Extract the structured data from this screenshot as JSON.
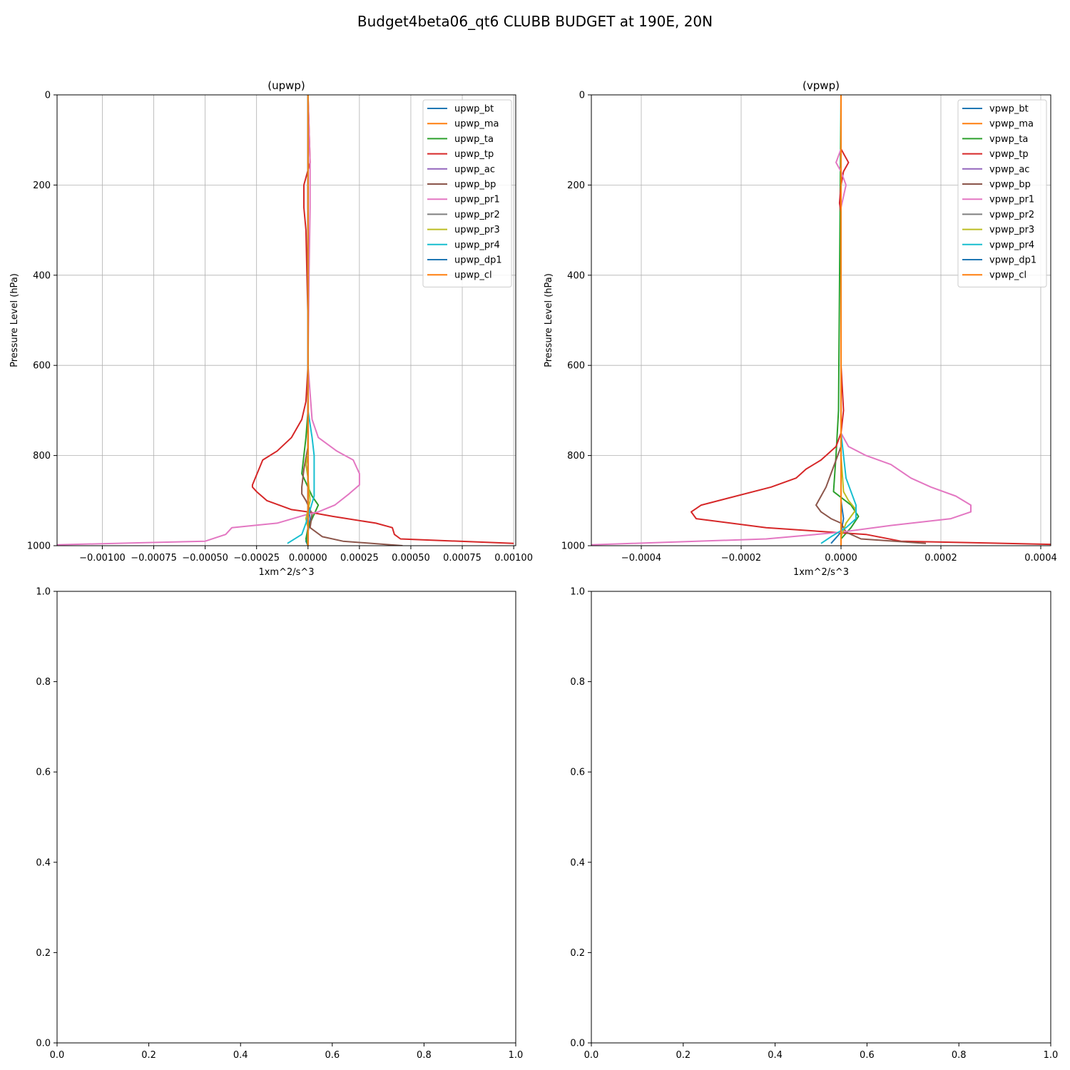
{
  "figure": {
    "suptitle": "Budget4beta06_qt6 CLUBB BUDGET at 190E, 20N"
  },
  "chart_data": [
    {
      "type": "line",
      "title": "(upwp)",
      "xlabel": "1xm^2/s^3",
      "ylabel": "Pressure Level (hPa)",
      "xlim": [
        -0.00122,
        0.00101
      ],
      "ylim": [
        1000,
        0
      ],
      "xticks": [
        -0.001,
        -0.00075,
        -0.0005,
        -0.00025,
        0,
        0.00025,
        0.0005,
        0.00075,
        0.001
      ],
      "xtick_labels": [
        "−0.00100",
        "−0.00075",
        "−0.00050",
        "−0.00025",
        "0.00000",
        "0.00025",
        "0.00050",
        "0.00075",
        "0.00100"
      ],
      "yticks": [
        0,
        200,
        400,
        600,
        800,
        1000
      ],
      "ytick_labels": [
        "0",
        "200",
        "400",
        "600",
        "800",
        "1000"
      ],
      "grid": true,
      "legend_position": "top-right",
      "series": [
        {
          "name": "upwp_bt",
          "color": "#1f77b4",
          "points": [
            [
              0,
              0
            ],
            [
              0,
              900
            ],
            [
              1e-05,
              940
            ],
            [
              0,
              970
            ],
            [
              -1e-05,
              990
            ],
            [
              0,
              1000
            ]
          ]
        },
        {
          "name": "upwp_ma",
          "color": "#ff7f0e",
          "points": [
            [
              0,
              0
            ],
            [
              0,
              1000
            ]
          ]
        },
        {
          "name": "upwp_ta",
          "color": "#2ca02c",
          "points": [
            [
              0,
              0
            ],
            [
              0,
              700
            ],
            [
              -1e-05,
              760
            ],
            [
              -2e-05,
              800
            ],
            [
              -3e-05,
              840
            ],
            [
              2e-05,
              890
            ],
            [
              5e-05,
              910
            ],
            [
              3e-05,
              930
            ],
            [
              0,
              960
            ],
            [
              -1e-05,
              985
            ],
            [
              0,
              1000
            ]
          ]
        },
        {
          "name": "upwp_tp",
          "color": "#d62728",
          "points": [
            [
              0,
              0
            ],
            [
              1e-05,
              150
            ],
            [
              -2e-05,
              200
            ],
            [
              -2e-05,
              250
            ],
            [
              -1e-05,
              300
            ],
            [
              -5e-06,
              400
            ],
            [
              0,
              500
            ],
            [
              0,
              600
            ],
            [
              -1e-05,
              680
            ],
            [
              -3e-05,
              720
            ],
            [
              -8e-05,
              760
            ],
            [
              -0.00015,
              790
            ],
            [
              -0.00022,
              810
            ],
            [
              -0.00027,
              865
            ],
            [
              -0.00027,
              870
            ],
            [
              -0.00025,
              880
            ],
            [
              -0.0002,
              900
            ],
            [
              -8e-05,
              920
            ],
            [
              0,
              925
            ],
            [
              0.00012,
              935
            ],
            [
              0.00033,
              950
            ],
            [
              0.00041,
              960
            ],
            [
              0.00042,
              975
            ],
            [
              0.00045,
              985
            ],
            [
              0.001,
              995
            ]
          ]
        },
        {
          "name": "upwp_ac",
          "color": "#9467bd",
          "points": [
            [
              0,
              0
            ],
            [
              0,
              1000
            ]
          ]
        },
        {
          "name": "upwp_bp",
          "color": "#8c564b",
          "points": [
            [
              0,
              0
            ],
            [
              0,
              780
            ],
            [
              -2e-05,
              830
            ],
            [
              -3e-05,
              870
            ],
            [
              -3e-05,
              885
            ],
            [
              -1e-05,
              900
            ],
            [
              2e-05,
              930
            ],
            [
              1e-05,
              960
            ],
            [
              7e-05,
              980
            ],
            [
              0.00017,
              990
            ],
            [
              0.00046,
              1000
            ]
          ]
        },
        {
          "name": "upwp_pr1",
          "color": "#e377c2",
          "points": [
            [
              0,
              0
            ],
            [
              1e-05,
              150
            ],
            [
              1e-05,
              250
            ],
            [
              5e-06,
              400
            ],
            [
              0,
              600
            ],
            [
              2e-05,
              720
            ],
            [
              5e-05,
              760
            ],
            [
              0.00014,
              790
            ],
            [
              0.00022,
              810
            ],
            [
              0.00025,
              840
            ],
            [
              0.00025,
              865
            ],
            [
              0.0002,
              885
            ],
            [
              0.00013,
              910
            ],
            [
              5e-05,
              925
            ],
            [
              0,
              930
            ],
            [
              -0.00015,
              950
            ],
            [
              -0.00037,
              960
            ],
            [
              -0.0004,
              975
            ],
            [
              -0.0005,
              990
            ],
            [
              -0.00122,
              998
            ]
          ]
        },
        {
          "name": "upwp_pr2",
          "color": "#7f7f7f",
          "points": [
            [
              0,
              0
            ],
            [
              0,
              1000
            ]
          ]
        },
        {
          "name": "upwp_pr3",
          "color": "#bcbd22",
          "points": [
            [
              0,
              0
            ],
            [
              0,
              790
            ],
            [
              -1e-05,
              820
            ],
            [
              0,
              850
            ],
            [
              1e-05,
              900
            ],
            [
              -1e-05,
              940
            ],
            [
              0,
              960
            ],
            [
              0,
              1000
            ]
          ]
        },
        {
          "name": "upwp_pr4",
          "color": "#17becf",
          "points": [
            [
              0,
              0
            ],
            [
              0,
              700
            ],
            [
              2e-05,
              760
            ],
            [
              3e-05,
              800
            ],
            [
              3e-05,
              860
            ],
            [
              3e-05,
              890
            ],
            [
              1e-05,
              920
            ],
            [
              -1e-05,
              950
            ],
            [
              -3e-05,
              975
            ],
            [
              -0.0001,
              995
            ]
          ]
        },
        {
          "name": "upwp_dp1",
          "color": "#1f77b4",
          "points": [
            [
              0,
              0
            ],
            [
              0,
              1000
            ]
          ]
        },
        {
          "name": "upwp_cl",
          "color": "#ff7f0e",
          "points": [
            [
              0,
              0
            ],
            [
              0,
              1000
            ]
          ]
        }
      ]
    },
    {
      "type": "line",
      "title": "(vpwp)",
      "xlabel": "1xm^2/s^3",
      "ylabel": "Pressure Level (hPa)",
      "xlim": [
        -0.0005,
        0.00042
      ],
      "ylim": [
        1000,
        0
      ],
      "xticks": [
        -0.0004,
        -0.0002,
        0,
        0.0002,
        0.0004
      ],
      "xtick_labels": [
        "−0.0004",
        "−0.0002",
        "0.0000",
        "0.0002",
        "0.0004"
      ],
      "yticks": [
        0,
        200,
        400,
        600,
        800,
        1000
      ],
      "ytick_labels": [
        "0",
        "200",
        "400",
        "600",
        "800",
        "1000"
      ],
      "grid": true,
      "legend_position": "top-right",
      "series": [
        {
          "name": "vpwp_bt",
          "color": "#1f77b4",
          "points": [
            [
              0,
              0
            ],
            [
              0,
              900
            ],
            [
              5e-06,
              940
            ],
            [
              0,
              970
            ],
            [
              -2e-05,
              995
            ]
          ]
        },
        {
          "name": "vpwp_ma",
          "color": "#ff7f0e",
          "points": [
            [
              0,
              0
            ],
            [
              0,
              1000
            ]
          ]
        },
        {
          "name": "vpwp_ta",
          "color": "#2ca02c",
          "points": [
            [
              0,
              0
            ],
            [
              -5e-06,
              700
            ],
            [
              -1e-05,
              800
            ],
            [
              -1.5e-05,
              880
            ],
            [
              2e-05,
              910
            ],
            [
              3.5e-05,
              935
            ],
            [
              2e-05,
              960
            ],
            [
              0,
              985
            ]
          ]
        },
        {
          "name": "vpwp_tp",
          "color": "#d62728",
          "points": [
            [
              0,
              0
            ],
            [
              0,
              120
            ],
            [
              5e-06,
              130
            ],
            [
              1.5e-05,
              150
            ],
            [
              5e-06,
              170
            ],
            [
              0,
              200
            ],
            [
              -3e-06,
              240
            ],
            [
              0,
              260
            ],
            [
              0,
              400
            ],
            [
              0,
              600
            ],
            [
              5e-06,
              700
            ],
            [
              0,
              750
            ],
            [
              -1e-05,
              780
            ],
            [
              -4e-05,
              810
            ],
            [
              -7e-05,
              830
            ],
            [
              -9e-05,
              850
            ],
            [
              -0.00014,
              870
            ],
            [
              -0.00028,
              910
            ],
            [
              -0.0003,
              925
            ],
            [
              -0.00029,
              940
            ],
            [
              -0.00015,
              960
            ],
            [
              -2e-05,
              970
            ],
            [
              5e-05,
              975
            ],
            [
              0.00012,
              990
            ],
            [
              0.00042,
              997
            ]
          ]
        },
        {
          "name": "vpwp_ac",
          "color": "#9467bd",
          "points": [
            [
              0,
              0
            ],
            [
              0,
              1000
            ]
          ]
        },
        {
          "name": "vpwp_bp",
          "color": "#8c564b",
          "points": [
            [
              0,
              0
            ],
            [
              0,
              780
            ],
            [
              -2e-05,
              840
            ],
            [
              -3e-05,
              870
            ],
            [
              -4e-05,
              890
            ],
            [
              -5e-05,
              910
            ],
            [
              -4e-05,
              925
            ],
            [
              -2e-05,
              940
            ],
            [
              0,
              950
            ],
            [
              1e-05,
              970
            ],
            [
              4e-05,
              985
            ],
            [
              0.00017,
              995
            ]
          ]
        },
        {
          "name": "vpwp_pr1",
          "color": "#e377c2",
          "points": [
            [
              0,
              0
            ],
            [
              0,
              120
            ],
            [
              -1e-05,
              150
            ],
            [
              0,
              170
            ],
            [
              1e-05,
              200
            ],
            [
              0,
              250
            ],
            [
              0,
              400
            ],
            [
              0,
              600
            ],
            [
              0,
              750
            ],
            [
              1.5e-05,
              780
            ],
            [
              5e-05,
              800
            ],
            [
              0.0001,
              820
            ],
            [
              0.00014,
              850
            ],
            [
              0.00018,
              870
            ],
            [
              0.00023,
              890
            ],
            [
              0.00026,
              910
            ],
            [
              0.00026,
              925
            ],
            [
              0.00022,
              940
            ],
            [
              0.0001,
              955
            ],
            [
              0,
              970
            ],
            [
              -0.0001,
              980
            ],
            [
              -0.00015,
              985
            ],
            [
              -0.0005,
              998
            ]
          ]
        },
        {
          "name": "vpwp_pr2",
          "color": "#7f7f7f",
          "points": [
            [
              0,
              0
            ],
            [
              0,
              1000
            ]
          ]
        },
        {
          "name": "vpwp_pr3",
          "color": "#bcbd22",
          "points": [
            [
              0,
              0
            ],
            [
              0,
              800
            ],
            [
              5e-06,
              880
            ],
            [
              1.5e-05,
              900
            ],
            [
              3e-05,
              920
            ],
            [
              1e-05,
              950
            ],
            [
              0,
              980
            ],
            [
              0,
              1000
            ]
          ]
        },
        {
          "name": "vpwp_pr4",
          "color": "#17becf",
          "points": [
            [
              0,
              0
            ],
            [
              0,
              750
            ],
            [
              5e-06,
              800
            ],
            [
              1e-05,
              850
            ],
            [
              2e-05,
              880
            ],
            [
              3e-05,
              910
            ],
            [
              3e-05,
              940
            ],
            [
              1e-05,
              960
            ],
            [
              -2e-05,
              980
            ],
            [
              -4e-05,
              995
            ]
          ]
        },
        {
          "name": "vpwp_dp1",
          "color": "#1f77b4",
          "points": [
            [
              0,
              0
            ],
            [
              0,
              1000
            ]
          ]
        },
        {
          "name": "vpwp_cl",
          "color": "#ff7f0e",
          "points": [
            [
              0,
              0
            ],
            [
              0,
              1000
            ]
          ]
        }
      ]
    },
    {
      "type": "line",
      "title": "",
      "xlim": [
        0,
        1
      ],
      "ylim": [
        0,
        1
      ],
      "xtick_labels": [
        "0.0",
        "0.2",
        "0.4",
        "0.6",
        "0.8",
        "1.0"
      ],
      "ytick_labels": [
        "0.0",
        "0.2",
        "0.4",
        "0.6",
        "0.8",
        "1.0"
      ],
      "grid": false,
      "series": []
    },
    {
      "type": "line",
      "title": "",
      "xlim": [
        0,
        1
      ],
      "ylim": [
        0,
        1
      ],
      "xtick_labels": [
        "0.0",
        "0.2",
        "0.4",
        "0.6",
        "0.8",
        "1.0"
      ],
      "ytick_labels": [
        "0.0",
        "0.2",
        "0.4",
        "0.6",
        "0.8",
        "1.0"
      ],
      "grid": false,
      "series": []
    }
  ]
}
